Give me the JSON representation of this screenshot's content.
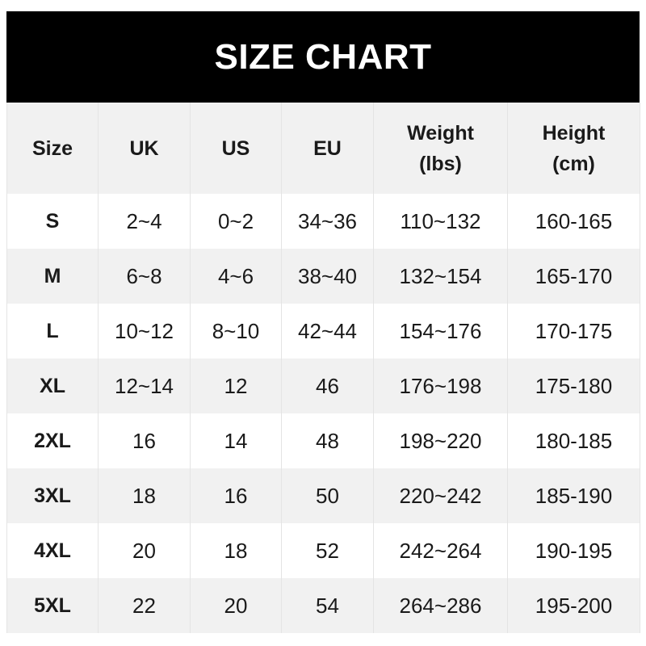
{
  "title": "SIZE CHART",
  "headers": [
    "Size",
    "UK",
    "US",
    "EU",
    "Weight\n(lbs)",
    "Height\n(cm)"
  ],
  "header_lines": {
    "weight": [
      "Weight",
      "(lbs)"
    ],
    "height": [
      "Height",
      "(cm)"
    ]
  },
  "rows": [
    [
      "S",
      "2~4",
      "0~2",
      "34~36",
      "110~132",
      "160-165"
    ],
    [
      "M",
      "6~8",
      "4~6",
      "38~40",
      "132~154",
      "165-170"
    ],
    [
      "L",
      "10~12",
      "8~10",
      "42~44",
      "154~176",
      "170-175"
    ],
    [
      "XL",
      "12~14",
      "12",
      "46",
      "176~198",
      "175-180"
    ],
    [
      "2XL",
      "16",
      "14",
      "48",
      "198~220",
      "180-185"
    ],
    [
      "3XL",
      "18",
      "16",
      "50",
      "220~242",
      "185-190"
    ],
    [
      "4XL",
      "20",
      "18",
      "52",
      "242~264",
      "190-195"
    ],
    [
      "5XL",
      "22",
      "20",
      "54",
      "264~286",
      "195-200"
    ]
  ],
  "colors": {
    "title_bg": "#000000",
    "stripe": "#f1f1f1"
  }
}
